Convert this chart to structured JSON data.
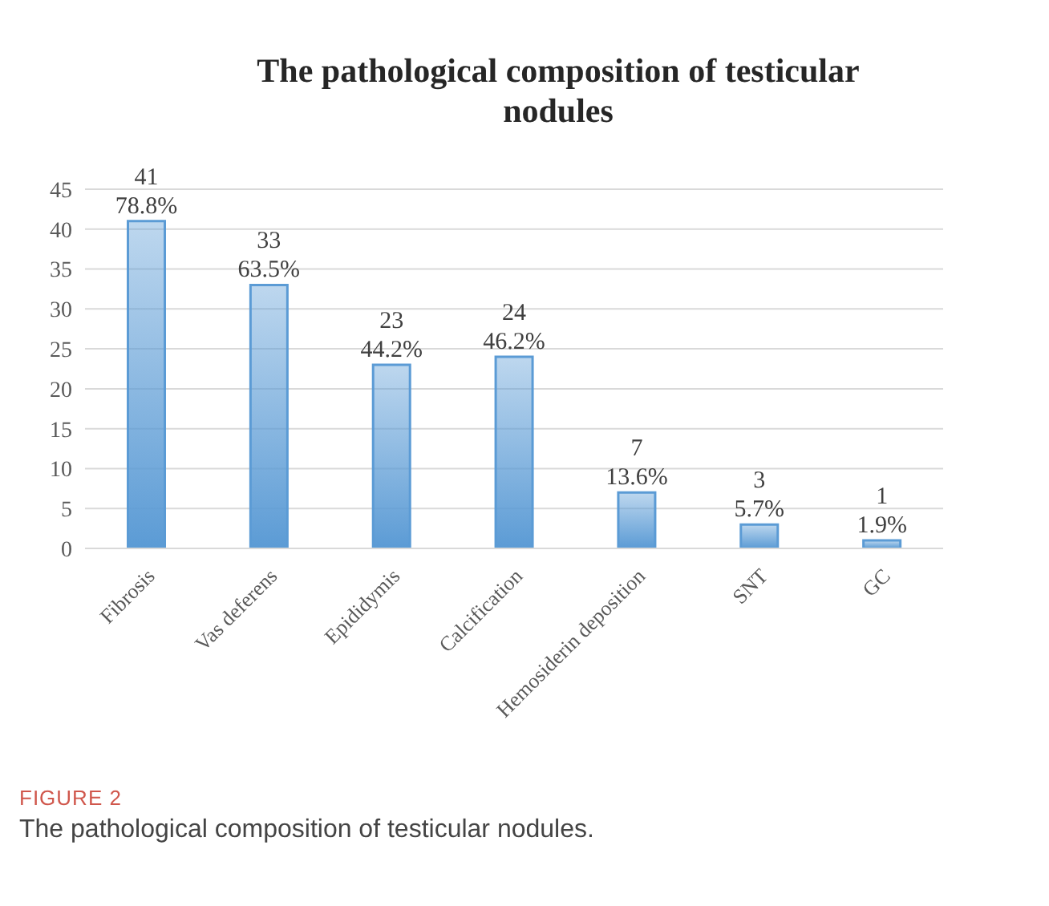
{
  "chart_data": {
    "type": "bar",
    "title": "The pathological composition of testicular nodules",
    "categories": [
      "Fibrosis",
      "Vas deferens",
      "Epididymis",
      "Calcification",
      "Hemosiderin deposition",
      "SNT",
      "GC"
    ],
    "values": [
      41,
      33,
      23,
      24,
      7,
      3,
      1
    ],
    "value_labels": [
      "41\n78.8%",
      "33\n63.5%",
      "23\n44.2%",
      "24\n46.2%",
      "7\n13.6%",
      "3\n5.7%",
      "1\n1.9%"
    ],
    "color": "#5b9bd5",
    "ylim": [
      0,
      45
    ],
    "yticks": [
      0,
      5,
      10,
      15,
      20,
      25,
      30,
      35,
      40,
      45
    ],
    "grid": "y",
    "annotations": [
      "FIGURE 2",
      "The pathological composition of testicular nodules."
    ]
  }
}
